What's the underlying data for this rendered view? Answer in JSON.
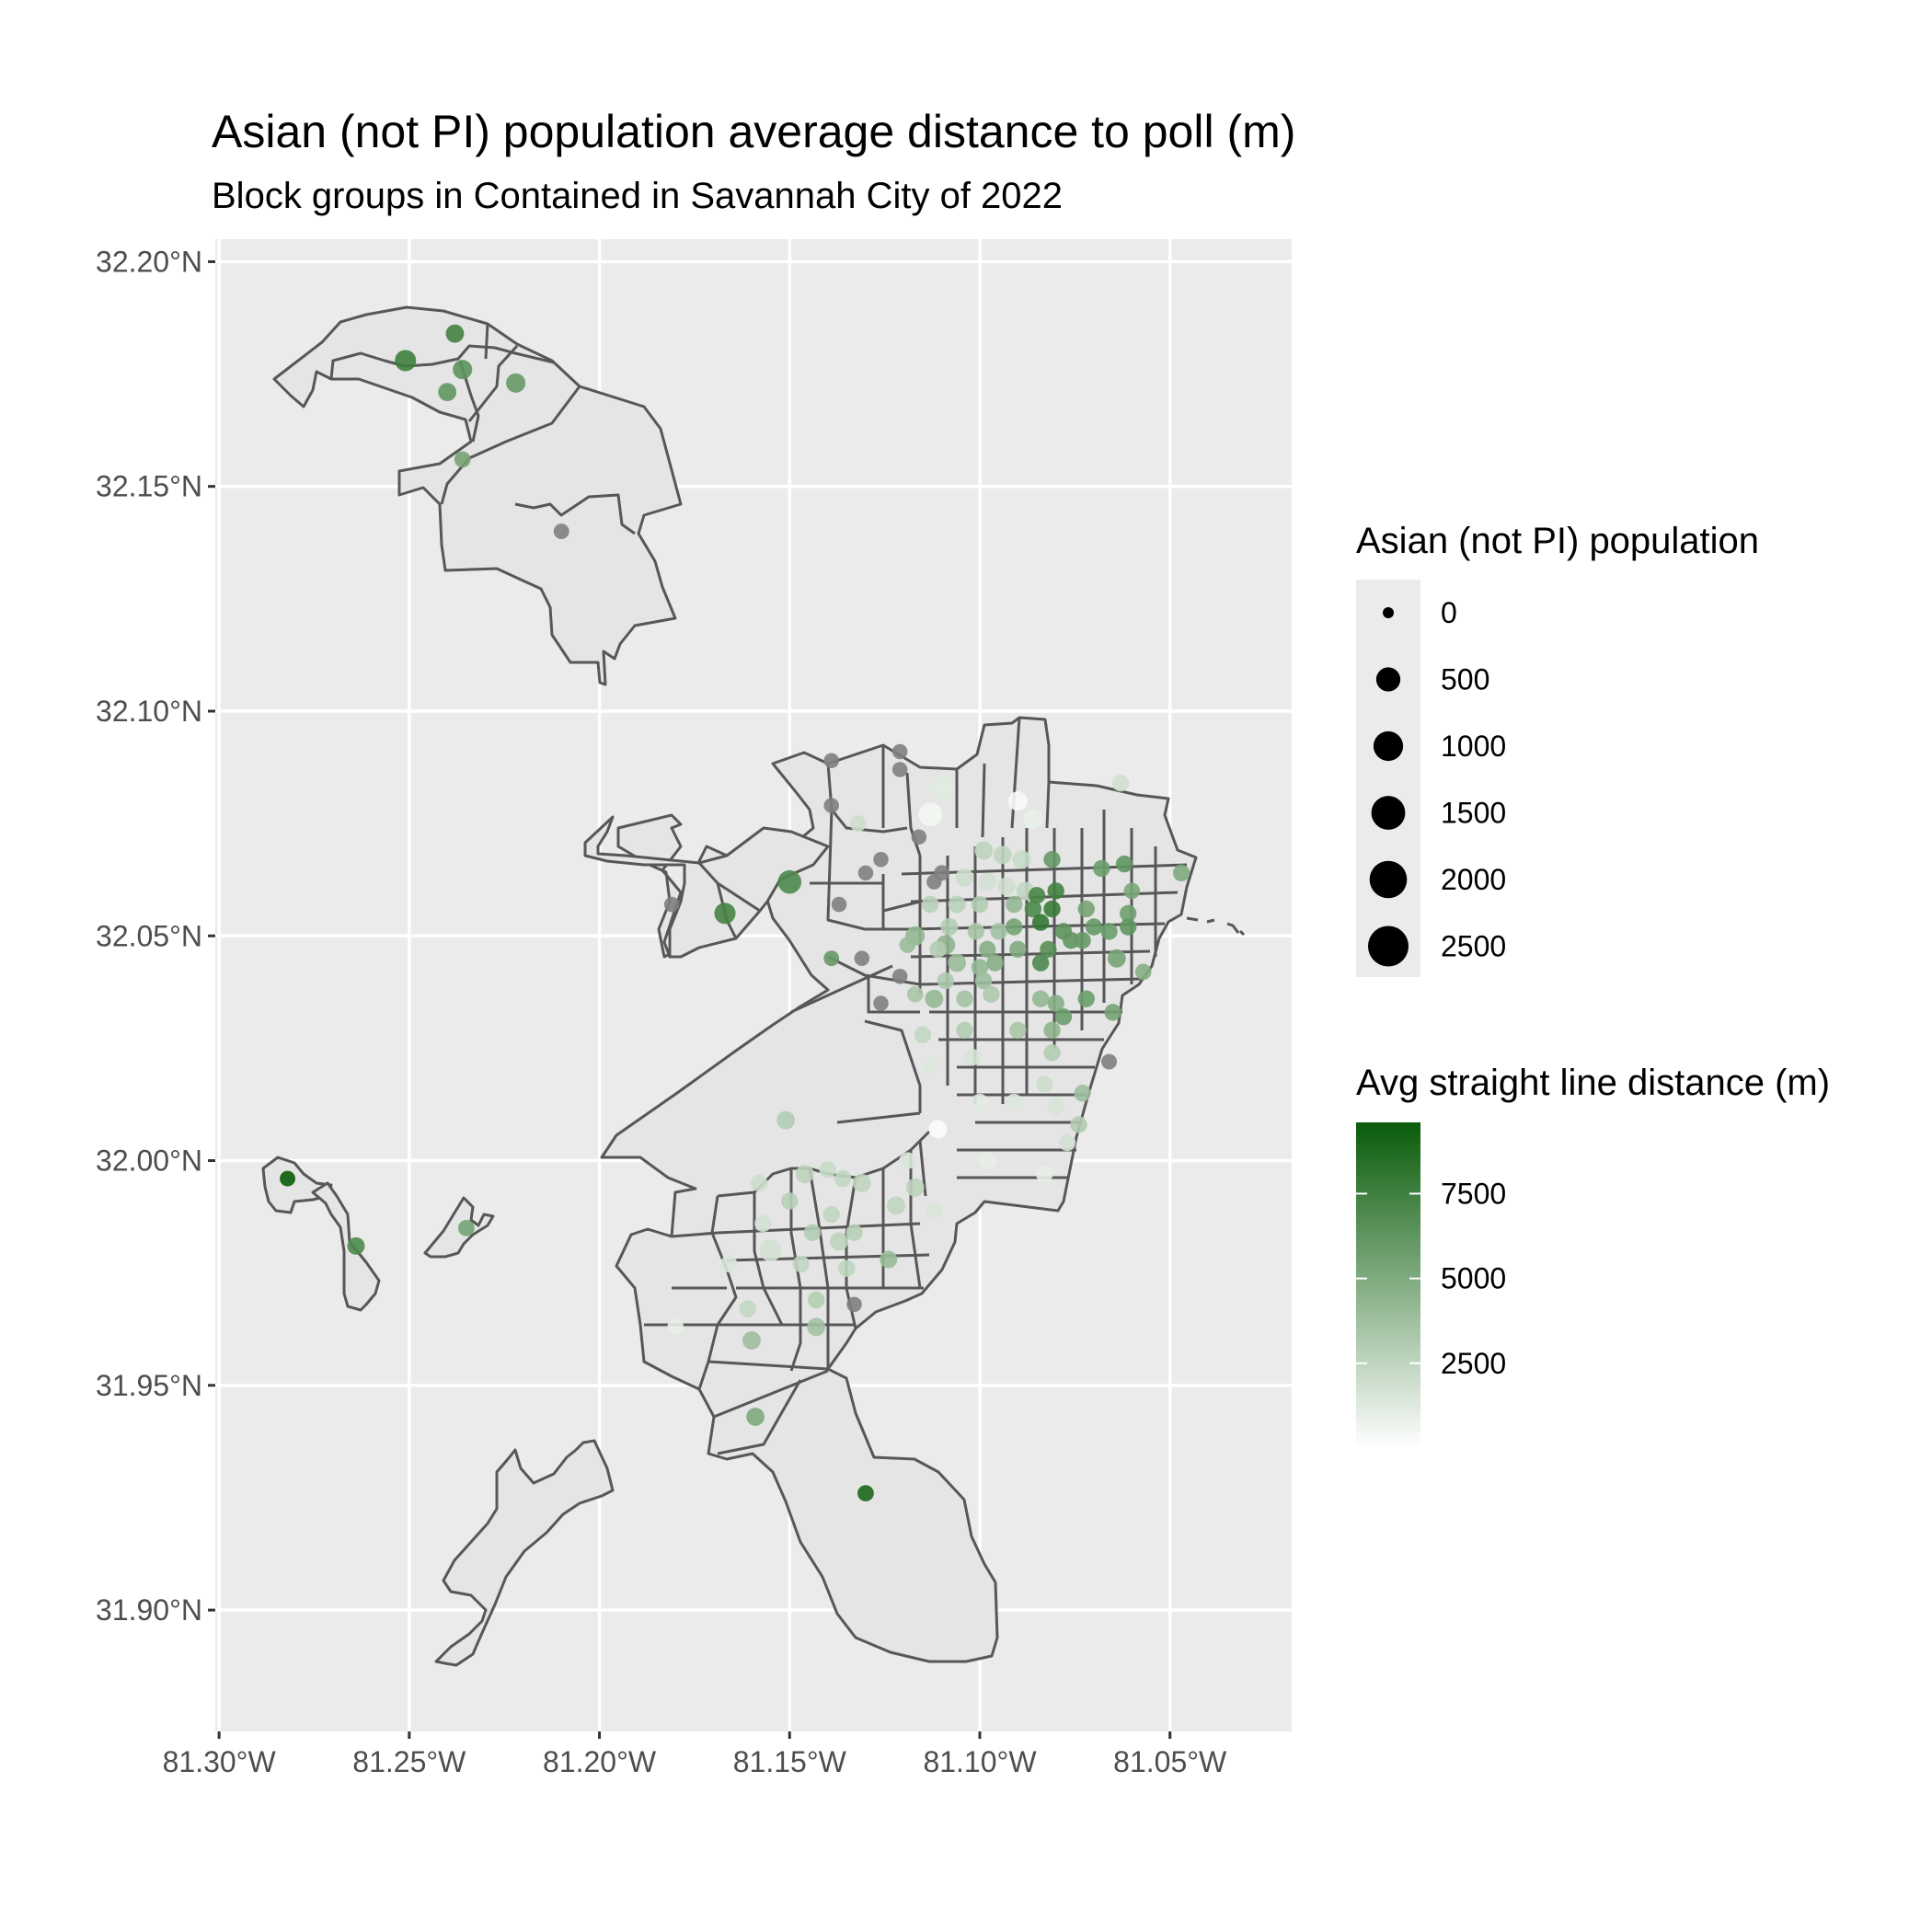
{
  "chart_data": {
    "type": "map",
    "title": "Asian (not PI) population average distance to poll (m)",
    "subtitle": "Block groups in Contained in Savannah City of 2022",
    "x_axis": {
      "ticks": [
        "81.30°W",
        "81.25°W",
        "81.20°W",
        "81.15°W",
        "81.10°W",
        "81.05°W"
      ],
      "lon_values": [
        -81.3,
        -81.25,
        -81.2,
        -81.15,
        -81.1,
        -81.05
      ],
      "range": [
        -81.301,
        -81.018
      ]
    },
    "y_axis": {
      "ticks": [
        "32.20°N",
        "32.15°N",
        "32.10°N",
        "32.05°N",
        "32.00°N",
        "31.95°N",
        "31.90°N"
      ],
      "lat_values": [
        32.2,
        32.15,
        32.1,
        32.05,
        32.0,
        31.95,
        31.9
      ],
      "range": [
        31.873,
        32.205
      ]
    },
    "grid": true,
    "panel_background": "#ebebeb",
    "region_fill": "#e5e5e5",
    "boundary_color": "#575757",
    "na_color": "#7f7f7f",
    "size_legend": {
      "title": "Asian (not PI) population",
      "labels": [
        "0",
        "500",
        "1000",
        "1500",
        "2000",
        "2500"
      ],
      "values": [
        0,
        500,
        1000,
        1500,
        2000,
        2500
      ]
    },
    "color_legend": {
      "title": "Avg straight line distance (m)",
      "labels": [
        "2500",
        "5000",
        "7500"
      ],
      "values": [
        2500,
        5000,
        7500
      ],
      "range": [
        0,
        9600
      ],
      "low_color": "#ffffff",
      "high_color": "#0a5c0a"
    },
    "points": [
      {
        "lon": -81.251,
        "lat": 32.178,
        "pop": 300,
        "dist": 7600
      },
      {
        "lon": -81.238,
        "lat": 32.184,
        "pop": 150,
        "dist": 7400
      },
      {
        "lon": -81.236,
        "lat": 32.176,
        "pop": 200,
        "dist": 6400
      },
      {
        "lon": -81.24,
        "lat": 32.171,
        "pop": 150,
        "dist": 6200
      },
      {
        "lon": -81.222,
        "lat": 32.173,
        "pop": 200,
        "dist": 6000
      },
      {
        "lon": -81.236,
        "lat": 32.156,
        "pop": 80,
        "dist": 5400
      },
      {
        "lon": -81.21,
        "lat": 32.14,
        "pop": 60,
        "dist": null
      },
      {
        "lon": -81.15,
        "lat": 32.062,
        "pop": 450,
        "dist": 7000
      },
      {
        "lon": -81.167,
        "lat": 32.055,
        "pop": 300,
        "dist": 7300
      },
      {
        "lon": -81.181,
        "lat": 32.057,
        "pop": 50,
        "dist": null
      },
      {
        "lon": -81.139,
        "lat": 32.089,
        "pop": 50,
        "dist": null
      },
      {
        "lon": -81.139,
        "lat": 32.079,
        "pop": 50,
        "dist": null
      },
      {
        "lon": -81.121,
        "lat": 32.091,
        "pop": 50,
        "dist": null
      },
      {
        "lon": -81.121,
        "lat": 32.087,
        "pop": 50,
        "dist": null
      },
      {
        "lon": -81.11,
        "lat": 32.083,
        "pop": 550,
        "dist": 1200
      },
      {
        "lon": -81.113,
        "lat": 32.077,
        "pop": 450,
        "dist": 500
      },
      {
        "lon": -81.09,
        "lat": 32.08,
        "pop": 200,
        "dist": 300
      },
      {
        "lon": -81.086,
        "lat": 32.076,
        "pop": 200,
        "dist": 900
      },
      {
        "lon": -81.063,
        "lat": 32.084,
        "pop": 100,
        "dist": 1800
      },
      {
        "lon": -81.132,
        "lat": 32.075,
        "pop": 80,
        "dist": 2000
      },
      {
        "lon": -81.126,
        "lat": 32.067,
        "pop": 50,
        "dist": null
      },
      {
        "lon": -81.116,
        "lat": 32.072,
        "pop": 50,
        "dist": null
      },
      {
        "lon": -81.13,
        "lat": 32.064,
        "pop": 50,
        "dist": null
      },
      {
        "lon": -81.137,
        "lat": 32.057,
        "pop": 50,
        "dist": null
      },
      {
        "lon": -81.11,
        "lat": 32.064,
        "pop": 60,
        "dist": null
      },
      {
        "lon": -81.112,
        "lat": 32.062,
        "pop": 50,
        "dist": null
      },
      {
        "lon": -81.099,
        "lat": 32.069,
        "pop": 150,
        "dist": 2600
      },
      {
        "lon": -81.094,
        "lat": 32.068,
        "pop": 150,
        "dist": 2500
      },
      {
        "lon": -81.089,
        "lat": 32.067,
        "pop": 150,
        "dist": 2200
      },
      {
        "lon": -81.081,
        "lat": 32.067,
        "pop": 100,
        "dist": 6000
      },
      {
        "lon": -81.068,
        "lat": 32.065,
        "pop": 100,
        "dist": 5800
      },
      {
        "lon": -81.062,
        "lat": 32.066,
        "pop": 100,
        "dist": 6200
      },
      {
        "lon": -81.047,
        "lat": 32.064,
        "pop": 100,
        "dist": 5000
      },
      {
        "lon": -81.104,
        "lat": 32.063,
        "pop": 150,
        "dist": 2000
      },
      {
        "lon": -81.098,
        "lat": 32.062,
        "pop": 150,
        "dist": 1800
      },
      {
        "lon": -81.093,
        "lat": 32.061,
        "pop": 150,
        "dist": 1900
      },
      {
        "lon": -81.088,
        "lat": 32.06,
        "pop": 150,
        "dist": 2400
      },
      {
        "lon": -81.085,
        "lat": 32.059,
        "pop": 100,
        "dist": 7200
      },
      {
        "lon": -81.08,
        "lat": 32.06,
        "pop": 100,
        "dist": 7400
      },
      {
        "lon": -81.06,
        "lat": 32.06,
        "pop": 80,
        "dist": 5200
      },
      {
        "lon": -81.113,
        "lat": 32.057,
        "pop": 100,
        "dist": 2800
      },
      {
        "lon": -81.106,
        "lat": 32.057,
        "pop": 120,
        "dist": 2700
      },
      {
        "lon": -81.1,
        "lat": 32.057,
        "pop": 100,
        "dist": 3000
      },
      {
        "lon": -81.091,
        "lat": 32.057,
        "pop": 100,
        "dist": 4200
      },
      {
        "lon": -81.086,
        "lat": 32.056,
        "pop": 100,
        "dist": 7000
      },
      {
        "lon": -81.081,
        "lat": 32.056,
        "pop": 100,
        "dist": 7800
      },
      {
        "lon": -81.072,
        "lat": 32.056,
        "pop": 100,
        "dist": 5400
      },
      {
        "lon": -81.061,
        "lat": 32.055,
        "pop": 100,
        "dist": 5600
      },
      {
        "lon": -81.117,
        "lat": 32.05,
        "pop": 200,
        "dist": 4200
      },
      {
        "lon": -81.108,
        "lat": 32.052,
        "pop": 120,
        "dist": 3000
      },
      {
        "lon": -81.101,
        "lat": 32.051,
        "pop": 100,
        "dist": 3400
      },
      {
        "lon": -81.095,
        "lat": 32.051,
        "pop": 100,
        "dist": 3600
      },
      {
        "lon": -81.091,
        "lat": 32.052,
        "pop": 100,
        "dist": 5500
      },
      {
        "lon": -81.084,
        "lat": 32.053,
        "pop": 100,
        "dist": 8000
      },
      {
        "lon": -81.078,
        "lat": 32.051,
        "pop": 100,
        "dist": 6400
      },
      {
        "lon": -81.07,
        "lat": 32.052,
        "pop": 100,
        "dist": 6000
      },
      {
        "lon": -81.066,
        "lat": 32.051,
        "pop": 100,
        "dist": 5800
      },
      {
        "lon": -81.061,
        "lat": 32.052,
        "pop": 100,
        "dist": 6200
      },
      {
        "lon": -81.109,
        "lat": 32.048,
        "pop": 200,
        "dist": 4400
      },
      {
        "lon": -81.098,
        "lat": 32.047,
        "pop": 100,
        "dist": 4800
      },
      {
        "lon": -81.09,
        "lat": 32.047,
        "pop": 100,
        "dist": 5000
      },
      {
        "lon": -81.082,
        "lat": 32.047,
        "pop": 100,
        "dist": 6600
      },
      {
        "lon": -81.076,
        "lat": 32.049,
        "pop": 100,
        "dist": 6200
      },
      {
        "lon": -81.073,
        "lat": 32.049,
        "pop": 100,
        "dist": 6000
      },
      {
        "lon": -81.119,
        "lat": 32.048,
        "pop": 80,
        "dist": 4000
      },
      {
        "lon": -81.139,
        "lat": 32.045,
        "pop": 60,
        "dist": 6000
      },
      {
        "lon": -81.131,
        "lat": 32.045,
        "pop": 50,
        "dist": null
      },
      {
        "lon": -81.111,
        "lat": 32.047,
        "pop": 100,
        "dist": 3000
      },
      {
        "lon": -81.106,
        "lat": 32.044,
        "pop": 150,
        "dist": 4000
      },
      {
        "lon": -81.1,
        "lat": 32.043,
        "pop": 100,
        "dist": 4200
      },
      {
        "lon": -81.096,
        "lat": 32.044,
        "pop": 100,
        "dist": 4800
      },
      {
        "lon": -81.084,
        "lat": 32.044,
        "pop": 100,
        "dist": 7000
      },
      {
        "lon": -81.064,
        "lat": 32.045,
        "pop": 150,
        "dist": 5400
      },
      {
        "lon": -81.057,
        "lat": 32.042,
        "pop": 80,
        "dist": 4800
      },
      {
        "lon": -81.121,
        "lat": 32.041,
        "pop": 50,
        "dist": null
      },
      {
        "lon": -81.109,
        "lat": 32.04,
        "pop": 100,
        "dist": 3200
      },
      {
        "lon": -81.099,
        "lat": 32.04,
        "pop": 100,
        "dist": 3800
      },
      {
        "lon": -81.117,
        "lat": 32.037,
        "pop": 80,
        "dist": 3400
      },
      {
        "lon": -81.112,
        "lat": 32.036,
        "pop": 150,
        "dist": 4200
      },
      {
        "lon": -81.104,
        "lat": 32.036,
        "pop": 100,
        "dist": 3600
      },
      {
        "lon": -81.097,
        "lat": 32.037,
        "pop": 100,
        "dist": 3200
      },
      {
        "lon": -81.084,
        "lat": 32.036,
        "pop": 100,
        "dist": 4200
      },
      {
        "lon": -81.08,
        "lat": 32.035,
        "pop": 100,
        "dist": 4800
      },
      {
        "lon": -81.072,
        "lat": 32.036,
        "pop": 100,
        "dist": 5800
      },
      {
        "lon": -81.126,
        "lat": 32.035,
        "pop": 50,
        "dist": null
      },
      {
        "lon": -81.078,
        "lat": 32.032,
        "pop": 100,
        "dist": 5800
      },
      {
        "lon": -81.065,
        "lat": 32.033,
        "pop": 100,
        "dist": 5400
      },
      {
        "lon": -81.081,
        "lat": 32.029,
        "pop": 100,
        "dist": 4400
      },
      {
        "lon": -81.09,
        "lat": 32.029,
        "pop": 100,
        "dist": 3400
      },
      {
        "lon": -81.104,
        "lat": 32.029,
        "pop": 100,
        "dist": 3000
      },
      {
        "lon": -81.115,
        "lat": 32.028,
        "pop": 100,
        "dist": 2400
      },
      {
        "lon": -81.081,
        "lat": 32.024,
        "pop": 100,
        "dist": 3000
      },
      {
        "lon": -81.066,
        "lat": 32.022,
        "pop": 60,
        "dist": null
      },
      {
        "lon": -81.102,
        "lat": 32.023,
        "pop": 100,
        "dist": 1600
      },
      {
        "lon": -81.113,
        "lat": 32.021,
        "pop": 100,
        "dist": 1400
      },
      {
        "lon": -81.083,
        "lat": 32.017,
        "pop": 100,
        "dist": 2000
      },
      {
        "lon": -81.073,
        "lat": 32.015,
        "pop": 100,
        "dist": 3800
      },
      {
        "lon": -81.1,
        "lat": 32.013,
        "pop": 100,
        "dist": 1200
      },
      {
        "lon": -81.091,
        "lat": 32.013,
        "pop": 100,
        "dist": 1400
      },
      {
        "lon": -81.08,
        "lat": 32.012,
        "pop": 100,
        "dist": 1600
      },
      {
        "lon": -81.074,
        "lat": 32.008,
        "pop": 100,
        "dist": 3000
      },
      {
        "lon": -81.111,
        "lat": 32.007,
        "pop": 150,
        "dist": 200
      },
      {
        "lon": -81.077,
        "lat": 32.004,
        "pop": 100,
        "dist": 1800
      },
      {
        "lon": -81.151,
        "lat": 32.009,
        "pop": 150,
        "dist": 3000
      },
      {
        "lon": -81.119,
        "lat": 32.0,
        "pop": 100,
        "dist": 1500
      },
      {
        "lon": -81.098,
        "lat": 32.0,
        "pop": 100,
        "dist": 1000
      },
      {
        "lon": -81.083,
        "lat": 31.997,
        "pop": 100,
        "dist": 1000
      },
      {
        "lon": -81.158,
        "lat": 31.995,
        "pop": 100,
        "dist": 2000
      },
      {
        "lon": -81.146,
        "lat": 31.997,
        "pop": 150,
        "dist": 2600
      },
      {
        "lon": -81.14,
        "lat": 31.998,
        "pop": 100,
        "dist": 2200
      },
      {
        "lon": -81.136,
        "lat": 31.996,
        "pop": 100,
        "dist": 2400
      },
      {
        "lon": -81.131,
        "lat": 31.995,
        "pop": 150,
        "dist": 2500
      },
      {
        "lon": -81.117,
        "lat": 31.994,
        "pop": 150,
        "dist": 2600
      },
      {
        "lon": -81.15,
        "lat": 31.991,
        "pop": 100,
        "dist": 2800
      },
      {
        "lon": -81.139,
        "lat": 31.988,
        "pop": 100,
        "dist": 2500
      },
      {
        "lon": -81.122,
        "lat": 31.99,
        "pop": 150,
        "dist": 2500
      },
      {
        "lon": -81.112,
        "lat": 31.989,
        "pop": 100,
        "dist": 1500
      },
      {
        "lon": -81.157,
        "lat": 31.986,
        "pop": 100,
        "dist": 1800
      },
      {
        "lon": -81.144,
        "lat": 31.984,
        "pop": 100,
        "dist": 3000
      },
      {
        "lon": -81.137,
        "lat": 31.982,
        "pop": 150,
        "dist": 2600
      },
      {
        "lon": -81.133,
        "lat": 31.984,
        "pop": 100,
        "dist": 2800
      },
      {
        "lon": -81.155,
        "lat": 31.98,
        "pop": 350,
        "dist": 1800
      },
      {
        "lon": -81.124,
        "lat": 31.978,
        "pop": 120,
        "dist": 4000
      },
      {
        "lon": -81.147,
        "lat": 31.977,
        "pop": 100,
        "dist": 2400
      },
      {
        "lon": -81.135,
        "lat": 31.976,
        "pop": 100,
        "dist": 2500
      },
      {
        "lon": -81.166,
        "lat": 31.977,
        "pop": 100,
        "dist": 1500
      },
      {
        "lon": -81.143,
        "lat": 31.969,
        "pop": 100,
        "dist": 3000
      },
      {
        "lon": -81.161,
        "lat": 31.967,
        "pop": 100,
        "dist": 2400
      },
      {
        "lon": -81.143,
        "lat": 31.963,
        "pop": 150,
        "dist": 3600
      },
      {
        "lon": -81.16,
        "lat": 31.96,
        "pop": 150,
        "dist": 3800
      },
      {
        "lon": -81.133,
        "lat": 31.968,
        "pop": 50,
        "dist": null
      },
      {
        "lon": -81.18,
        "lat": 31.963,
        "pop": 80,
        "dist": 1000
      },
      {
        "lon": -81.159,
        "lat": 31.943,
        "pop": 150,
        "dist": 5000
      },
      {
        "lon": -81.13,
        "lat": 31.926,
        "pop": 80,
        "dist": 9000
      },
      {
        "lon": -81.282,
        "lat": 31.996,
        "pop": 60,
        "dist": 9600
      },
      {
        "lon": -81.264,
        "lat": 31.981,
        "pop": 120,
        "dist": 7000
      },
      {
        "lon": -81.235,
        "lat": 31.985,
        "pop": 80,
        "dist": 5500
      }
    ]
  }
}
